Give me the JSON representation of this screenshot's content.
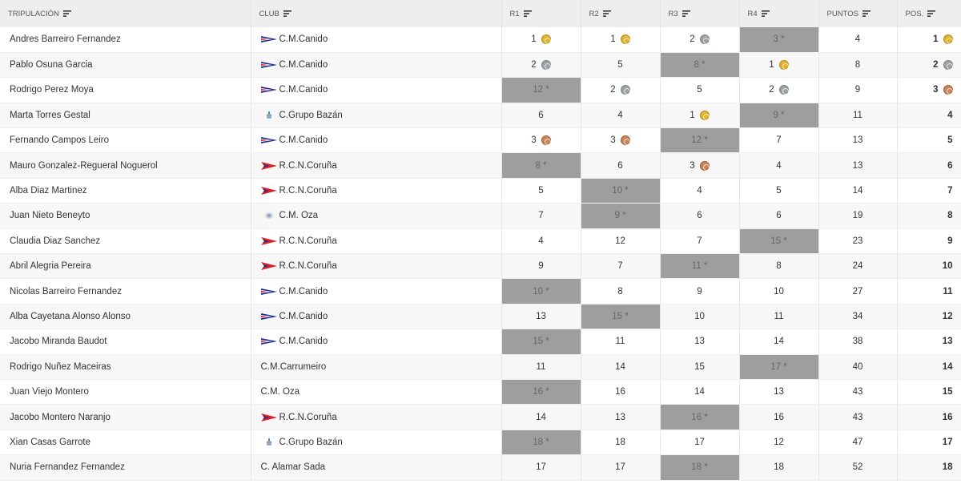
{
  "header": {
    "tripulacion": "TRIPULACIÓN",
    "club": "CLUB",
    "r1": "R1",
    "r2": "R2",
    "r3": "R3",
    "r4": "R4",
    "puntos": "PUNTOS",
    "pos": "POS."
  },
  "colors": {
    "discard_bg": "#9e9e9e",
    "gold": "#e2b431",
    "silver": "#9ea3a6",
    "bronze": "#c9845a"
  },
  "rows": [
    {
      "name": "Andres Barreiro Fernandez",
      "club": "C.M.Canido",
      "flag": "canido",
      "r": [
        "1",
        "1",
        "2",
        "3 *"
      ],
      "disc": [
        false,
        false,
        false,
        true
      ],
      "medal": [
        "gold",
        "gold",
        "silver",
        ""
      ],
      "pts": "4",
      "pos": "1",
      "posMedal": "gold"
    },
    {
      "name": "Pablo Osuna Garcia",
      "club": "C.M.Canido",
      "flag": "canido",
      "r": [
        "2",
        "5",
        "8 *",
        "1"
      ],
      "disc": [
        false,
        false,
        true,
        false
      ],
      "medal": [
        "silver",
        "",
        "",
        "gold"
      ],
      "pts": "8",
      "pos": "2",
      "posMedal": "silver"
    },
    {
      "name": "Rodrigo Perez Moya",
      "club": "C.M.Canido",
      "flag": "canido",
      "r": [
        "12 *",
        "2",
        "5",
        "2"
      ],
      "disc": [
        true,
        false,
        false,
        false
      ],
      "medal": [
        "",
        "silver",
        "",
        "silver"
      ],
      "pts": "9",
      "pos": "3",
      "posMedal": "bronze"
    },
    {
      "name": "Marta Torres Gestal",
      "club": "C.Grupo Bazán",
      "flag": "bazan",
      "r": [
        "6",
        "4",
        "1",
        "9 *"
      ],
      "disc": [
        false,
        false,
        false,
        true
      ],
      "medal": [
        "",
        "",
        "gold",
        ""
      ],
      "pts": "11",
      "pos": "4",
      "posMedal": ""
    },
    {
      "name": "Fernando Campos Leiro",
      "club": "C.M.Canido",
      "flag": "canido",
      "r": [
        "3",
        "3",
        "12 *",
        "7"
      ],
      "disc": [
        false,
        false,
        true,
        false
      ],
      "medal": [
        "bronze",
        "bronze",
        "",
        ""
      ],
      "pts": "13",
      "pos": "5",
      "posMedal": ""
    },
    {
      "name": "Mauro Gonzalez-Regueral Noguerol",
      "club": "R.C.N.Coruña",
      "flag": "rcn",
      "r": [
        "8 *",
        "6",
        "3",
        "4"
      ],
      "disc": [
        true,
        false,
        false,
        false
      ],
      "medal": [
        "",
        "",
        "bronze",
        ""
      ],
      "pts": "13",
      "pos": "6",
      "posMedal": ""
    },
    {
      "name": "Alba Diaz Martinez",
      "club": "R.C.N.Coruña",
      "flag": "rcn",
      "r": [
        "5",
        "10 *",
        "4",
        "5"
      ],
      "disc": [
        false,
        true,
        false,
        false
      ],
      "medal": [
        "",
        "",
        "",
        ""
      ],
      "pts": "14",
      "pos": "7",
      "posMedal": ""
    },
    {
      "name": "Juan Nieto Beneyto",
      "club": "C.M. Oza",
      "flag": "oza",
      "r": [
        "7",
        "9 *",
        "6",
        "6"
      ],
      "disc": [
        false,
        true,
        false,
        false
      ],
      "medal": [
        "",
        "",
        "",
        ""
      ],
      "pts": "19",
      "pos": "8",
      "posMedal": ""
    },
    {
      "name": "Claudia Diaz Sanchez",
      "club": "R.C.N.Coruña",
      "flag": "rcn",
      "r": [
        "4",
        "12",
        "7",
        "15 *"
      ],
      "disc": [
        false,
        false,
        false,
        true
      ],
      "medal": [
        "",
        "",
        "",
        ""
      ],
      "pts": "23",
      "pos": "9",
      "posMedal": ""
    },
    {
      "name": "Abril Alegria Pereira",
      "club": "R.C.N.Coruña",
      "flag": "rcn",
      "r": [
        "9",
        "7",
        "11 *",
        "8"
      ],
      "disc": [
        false,
        false,
        true,
        false
      ],
      "medal": [
        "",
        "",
        "",
        ""
      ],
      "pts": "24",
      "pos": "10",
      "posMedal": ""
    },
    {
      "name": "Nicolas Barreiro Fernandez",
      "club": "C.M.Canido",
      "flag": "canido",
      "r": [
        "10 *",
        "8",
        "9",
        "10"
      ],
      "disc": [
        true,
        false,
        false,
        false
      ],
      "medal": [
        "",
        "",
        "",
        ""
      ],
      "pts": "27",
      "pos": "11",
      "posMedal": ""
    },
    {
      "name": "Alba Cayetana Alonso Alonso",
      "club": "C.M.Canido",
      "flag": "canido",
      "r": [
        "13",
        "15 *",
        "10",
        "11"
      ],
      "disc": [
        false,
        true,
        false,
        false
      ],
      "medal": [
        "",
        "",
        "",
        ""
      ],
      "pts": "34",
      "pos": "12",
      "posMedal": ""
    },
    {
      "name": "Jacobo Miranda Baudot",
      "club": "C.M.Canido",
      "flag": "canido",
      "r": [
        "15 *",
        "11",
        "13",
        "14"
      ],
      "disc": [
        true,
        false,
        false,
        false
      ],
      "medal": [
        "",
        "",
        "",
        ""
      ],
      "pts": "38",
      "pos": "13",
      "posMedal": ""
    },
    {
      "name": "Rodrigo Nuñez Maceiras",
      "club": "C.M.Carrumeiro",
      "flag": "",
      "r": [
        "11",
        "14",
        "15",
        "17 *"
      ],
      "disc": [
        false,
        false,
        false,
        true
      ],
      "medal": [
        "",
        "",
        "",
        ""
      ],
      "pts": "40",
      "pos": "14",
      "posMedal": ""
    },
    {
      "name": "Juan Viejo Montero",
      "club": "C.M. Oza",
      "flag": "",
      "r": [
        "16 *",
        "16",
        "14",
        "13"
      ],
      "disc": [
        true,
        false,
        false,
        false
      ],
      "medal": [
        "",
        "",
        "",
        ""
      ],
      "pts": "43",
      "pos": "15",
      "posMedal": ""
    },
    {
      "name": "Jacobo Montero Naranjo",
      "club": "R.C.N.Coruña",
      "flag": "rcn",
      "r": [
        "14",
        "13",
        "16 *",
        "16"
      ],
      "disc": [
        false,
        false,
        true,
        false
      ],
      "medal": [
        "",
        "",
        "",
        ""
      ],
      "pts": "43",
      "pos": "16",
      "posMedal": ""
    },
    {
      "name": "Xian Casas Garrote",
      "club": "C.Grupo Bazán",
      "flag": "bazan",
      "r": [
        "18 *",
        "18",
        "17",
        "12"
      ],
      "disc": [
        true,
        false,
        false,
        false
      ],
      "medal": [
        "",
        "",
        "",
        ""
      ],
      "pts": "47",
      "pos": "17",
      "posMedal": ""
    },
    {
      "name": "Nuria Fernandez Fernandez",
      "club": "C. Alamar Sada",
      "flag": "",
      "r": [
        "17",
        "17",
        "18 *",
        "18"
      ],
      "disc": [
        false,
        false,
        true,
        false
      ],
      "medal": [
        "",
        "",
        "",
        ""
      ],
      "pts": "52",
      "pos": "18",
      "posMedal": ""
    }
  ]
}
